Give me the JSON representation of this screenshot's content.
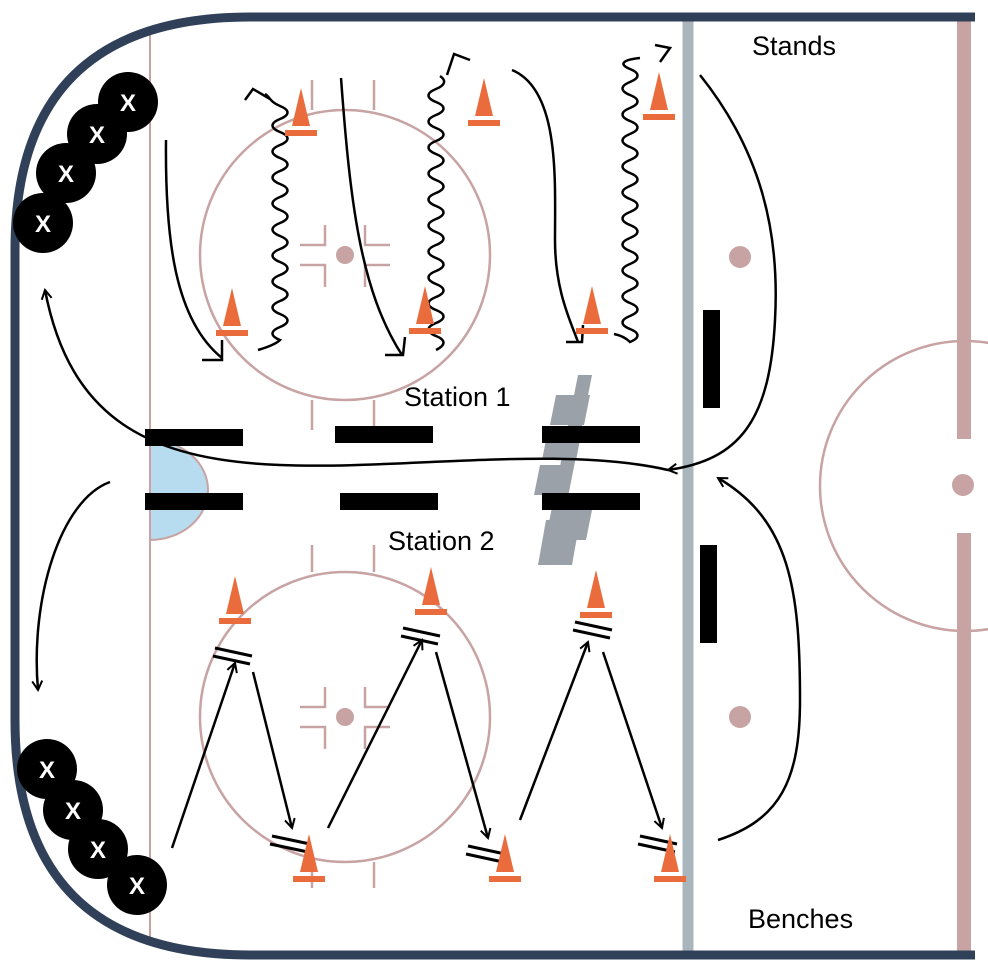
{
  "labels": {
    "stands": "Stands",
    "benches": "Benches",
    "station_1": "Station 1",
    "station_2": "Station 2"
  },
  "player_marker": "X",
  "colors": {
    "boards": "#2f4058",
    "rink_lines": "#c8a3a3",
    "blue_line": "#a9b5bd",
    "crease": "#b7dcf0",
    "cone": "#ea6b3b",
    "marker": "#000000",
    "logo": "#9aa1a8"
  },
  "icons": {
    "player": "player-x-icon",
    "cone": "cone-icon",
    "barrier": "barrier-bar",
    "logo": "ihs-logo-icon"
  }
}
